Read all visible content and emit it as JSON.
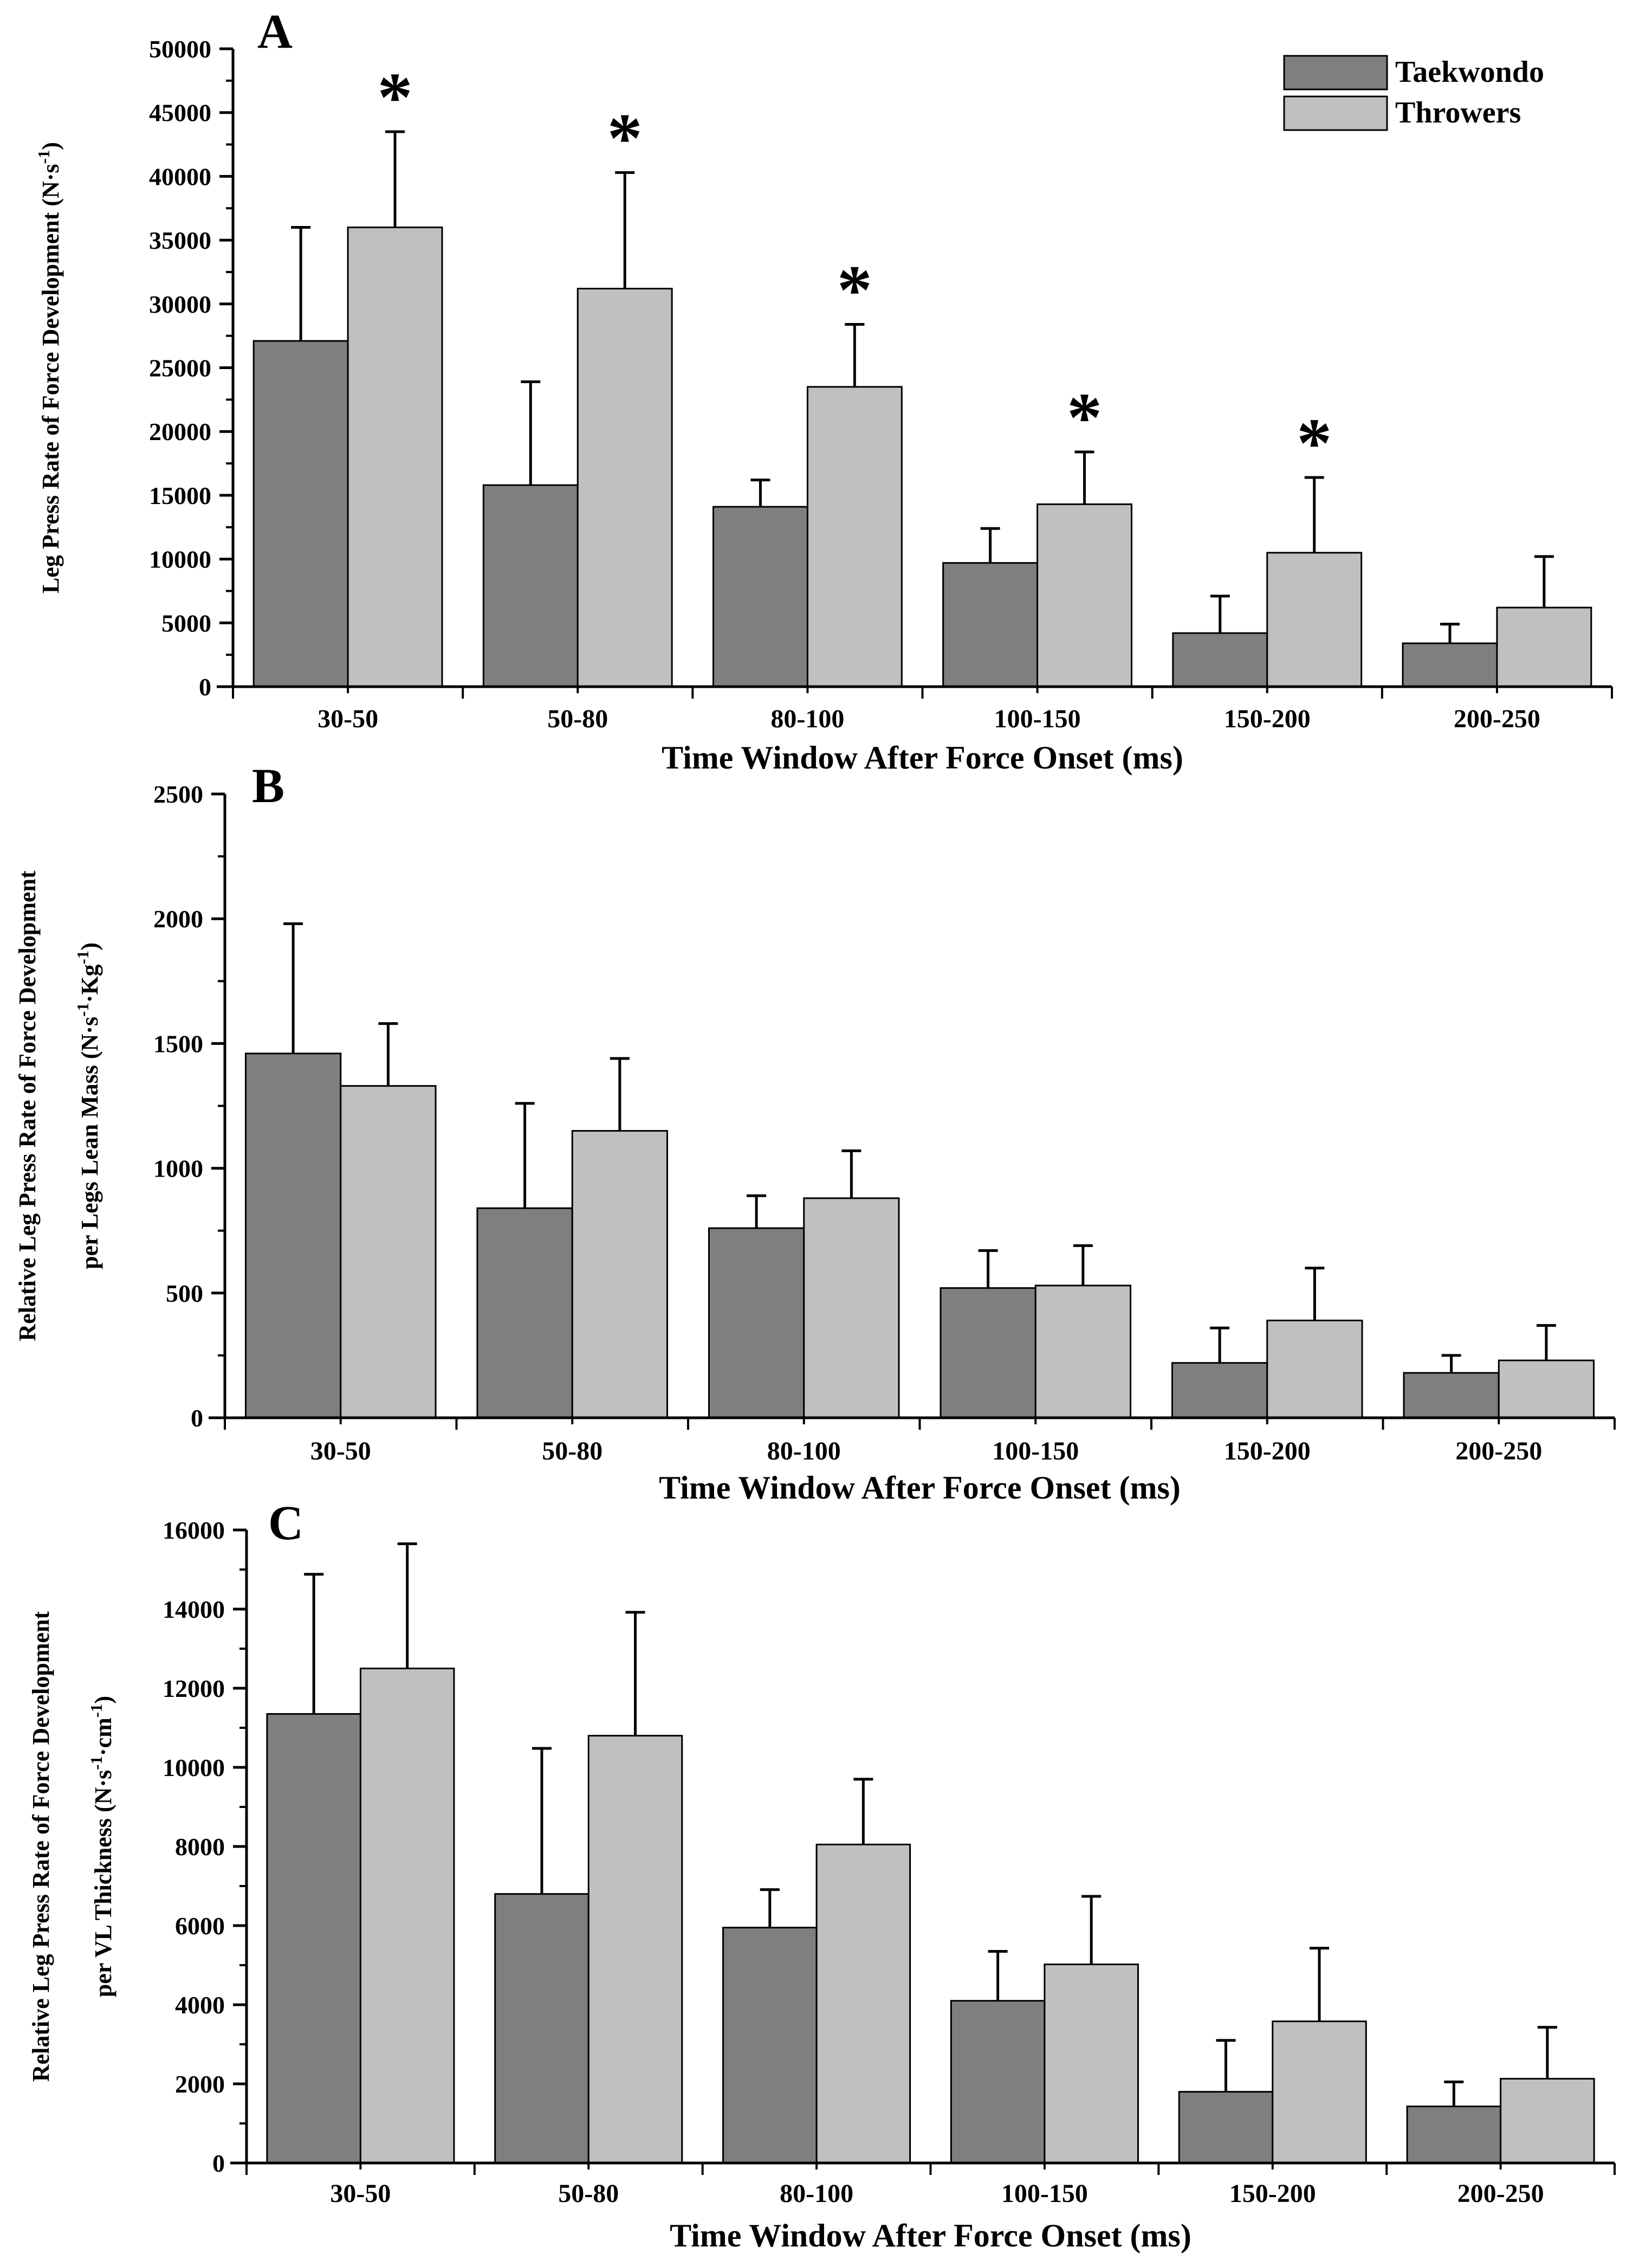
{
  "legend": {
    "series": [
      "Taekwondo",
      "Throwers"
    ]
  },
  "colors": {
    "taekwondo": "#7f7f7f",
    "throwers": "#c0c0c0",
    "axis": "#000000"
  },
  "chart_data": [
    {
      "type": "bar",
      "panel": "A",
      "categories": [
        "30-50",
        "50-80",
        "80-100",
        "100-150",
        "150-200",
        "200-250"
      ],
      "series": [
        {
          "name": "Taekwondo",
          "values": [
            27100,
            15800,
            14100,
            9700,
            4200,
            3400
          ],
          "errors": [
            8900,
            8100,
            2100,
            2700,
            2900,
            1500
          ]
        },
        {
          "name": "Throwers",
          "values": [
            36000,
            31200,
            23500,
            14300,
            10500,
            6200
          ],
          "errors": [
            7500,
            9100,
            4900,
            4100,
            5900,
            4000
          ]
        }
      ],
      "significant": [
        "*",
        "*",
        "*",
        "*",
        "*",
        ""
      ],
      "xlabel": "Time Window After Force Onset (ms)",
      "ylabel": "Leg Press Rate of Force Development (N·s-1)",
      "yticks": [
        "0",
        "5000",
        "10000",
        "15000",
        "20000",
        "25000",
        "30000",
        "35000",
        "40000",
        "45000",
        "50000"
      ],
      "ylim": [
        0,
        50000
      ]
    },
    {
      "type": "bar",
      "panel": "B",
      "categories": [
        "30-50",
        "50-80",
        "80-100",
        "100-150",
        "150-200",
        "200-250"
      ],
      "series": [
        {
          "name": "Taekwondo",
          "values": [
            1460,
            840,
            760,
            520,
            220,
            180
          ],
          "errors": [
            520,
            420,
            130,
            150,
            140,
            70
          ]
        },
        {
          "name": "Throwers",
          "values": [
            1330,
            1150,
            880,
            530,
            390,
            230
          ],
          "errors": [
            250,
            290,
            190,
            160,
            210,
            140
          ]
        }
      ],
      "significant": [
        "",
        "",
        "",
        "",
        "",
        ""
      ],
      "xlabel": "Time Window After Force Onset (ms)",
      "ylabel_lines": [
        "Relative Leg Press Rate of Force Development",
        "per Legs Lean Mass (N·s-1·Kg-1)"
      ],
      "yticks": [
        "0",
        "500",
        "1000",
        "1500",
        "2000",
        "2500"
      ],
      "ylim": [
        0,
        2500
      ]
    },
    {
      "type": "bar",
      "panel": "C",
      "categories": [
        "30-50",
        "50-80",
        "80-100",
        "100-150",
        "150-200",
        "200-250"
      ],
      "series": [
        {
          "name": "Taekwondo",
          "values": [
            11350,
            6800,
            5950,
            4100,
            1800,
            1430
          ],
          "errors": [
            3530,
            3680,
            960,
            1250,
            1300,
            620
          ]
        },
        {
          "name": "Throwers",
          "values": [
            12500,
            10800,
            8050,
            5020,
            3580,
            2130
          ],
          "errors": [
            3150,
            3120,
            1650,
            1720,
            1850,
            1300
          ]
        }
      ],
      "significant": [
        "",
        "",
        "",
        "",
        "",
        ""
      ],
      "xlabel": "Time Window After Force Onset (ms)",
      "ylabel_lines": [
        "Relative Leg Press Rate of Force Development",
        "per VL Thickness (N·s-1·cm-1)"
      ],
      "yticks": [
        "0",
        "2000",
        "4000",
        "6000",
        "8000",
        "10000",
        "12000",
        "14000",
        "16000"
      ],
      "ylim": [
        0,
        16000
      ]
    }
  ]
}
